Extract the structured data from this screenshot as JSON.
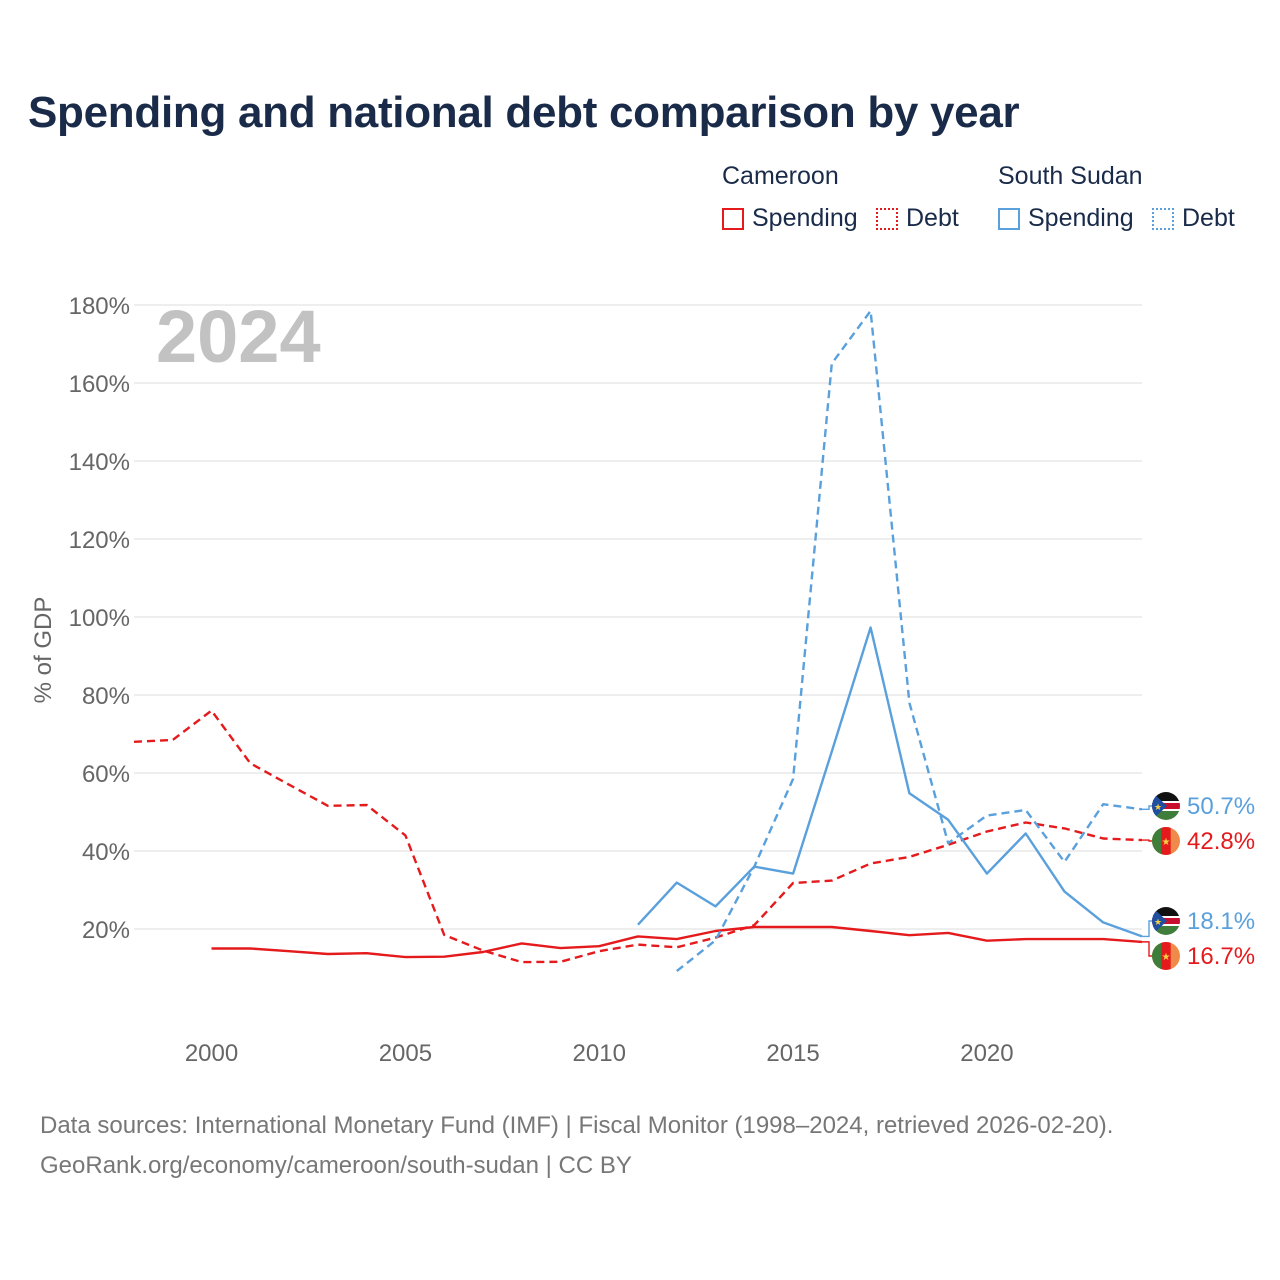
{
  "title": "Spending and national debt comparison by year",
  "legend": {
    "groups": [
      {
        "name": "Cameroon",
        "items": [
          {
            "label": "Spending",
            "style": "solid",
            "color": "#e41a1c"
          },
          {
            "label": "Debt",
            "style": "dotted",
            "color": "#e41a1c"
          }
        ]
      },
      {
        "name": "South Sudan",
        "items": [
          {
            "label": "Spending",
            "style": "solid",
            "color": "#5aa0dc"
          },
          {
            "label": "Debt",
            "style": "dotted",
            "color": "#5aa0dc"
          }
        ]
      }
    ]
  },
  "year_watermark": "2024",
  "source": {
    "line1": "Data sources: International Monetary Fund (IMF) | Fiscal Monitor (1998–2024, retrieved 2026-02-20).",
    "line2": "GeoRank.org/economy/cameroon/south-sudan | CC BY"
  },
  "chart_data": {
    "type": "line",
    "title": "Spending and national debt comparison by year",
    "xlabel": "",
    "ylabel": "% of GDP",
    "xlim": [
      1998,
      2024
    ],
    "ylim": [
      0,
      180
    ],
    "x_ticks": [
      2000,
      2005,
      2010,
      2015,
      2020
    ],
    "x_tick_labels": [
      "2000",
      "2005",
      "2010",
      "2015",
      "2020"
    ],
    "y_ticks": [
      20,
      40,
      60,
      80,
      100,
      120,
      140,
      160,
      180
    ],
    "y_tick_labels": [
      "20%",
      "40%",
      "60%",
      "80%",
      "100%",
      "120%",
      "140%",
      "160%",
      "180%"
    ],
    "grid": true,
    "series": [
      {
        "name": "Cameroon Spending",
        "country": "Cameroon",
        "metric": "Spending",
        "color": "#e41a1c",
        "dash": "solid",
        "end_label": "16.7%",
        "points": [
          [
            2000,
            15.0
          ],
          [
            2001,
            15.0
          ],
          [
            2002,
            14.3
          ],
          [
            2003,
            13.6
          ],
          [
            2004,
            13.8
          ],
          [
            2005,
            12.8
          ],
          [
            2006,
            12.9
          ],
          [
            2007,
            14.1
          ],
          [
            2008,
            16.3
          ],
          [
            2009,
            15.1
          ],
          [
            2010,
            15.6
          ],
          [
            2011,
            18.1
          ],
          [
            2012,
            17.4
          ],
          [
            2013,
            19.5
          ],
          [
            2014,
            20.5
          ],
          [
            2015,
            20.5
          ],
          [
            2016,
            20.5
          ],
          [
            2017,
            19.5
          ],
          [
            2018,
            18.4
          ],
          [
            2019,
            19.0
          ],
          [
            2020,
            17.0
          ],
          [
            2021,
            17.4
          ],
          [
            2022,
            17.4
          ],
          [
            2023,
            17.4
          ],
          [
            2024,
            16.7
          ]
        ]
      },
      {
        "name": "Cameroon Debt",
        "country": "Cameroon",
        "metric": "Debt",
        "color": "#e41a1c",
        "dash": "dashed",
        "end_label": "42.8%",
        "points": [
          [
            1998,
            68.0
          ],
          [
            1999,
            68.5
          ],
          [
            2000,
            76.0
          ],
          [
            2001,
            62.5
          ],
          [
            2002,
            57.0
          ],
          [
            2003,
            51.6
          ],
          [
            2004,
            51.8
          ],
          [
            2005,
            44.0
          ],
          [
            2006,
            18.5
          ],
          [
            2007,
            14.5
          ],
          [
            2008,
            11.5
          ],
          [
            2009,
            11.6
          ],
          [
            2010,
            14.3
          ],
          [
            2011,
            16.0
          ],
          [
            2012,
            15.3
          ],
          [
            2013,
            17.8
          ],
          [
            2014,
            21.0
          ],
          [
            2015,
            31.8
          ],
          [
            2016,
            32.4
          ],
          [
            2017,
            36.8
          ],
          [
            2018,
            38.5
          ],
          [
            2019,
            41.6
          ],
          [
            2020,
            45.0
          ],
          [
            2021,
            47.3
          ],
          [
            2022,
            45.8
          ],
          [
            2023,
            43.2
          ],
          [
            2024,
            42.8
          ]
        ]
      },
      {
        "name": "South Sudan Spending",
        "country": "South Sudan",
        "metric": "Spending",
        "color": "#5aa0dc",
        "dash": "solid",
        "end_label": "18.1%",
        "points": [
          [
            2011,
            21.1
          ],
          [
            2012,
            31.9
          ],
          [
            2013,
            25.8
          ],
          [
            2014,
            36.0
          ],
          [
            2015,
            34.2
          ],
          [
            2016,
            65.5
          ],
          [
            2017,
            97.3
          ],
          [
            2018,
            54.8
          ],
          [
            2019,
            48.0
          ],
          [
            2020,
            34.2
          ],
          [
            2021,
            44.5
          ],
          [
            2022,
            29.6
          ],
          [
            2023,
            21.7
          ],
          [
            2024,
            18.1
          ]
        ]
      },
      {
        "name": "South Sudan Debt",
        "country": "South Sudan",
        "metric": "Debt",
        "color": "#5aa0dc",
        "dash": "dashed",
        "end_label": "50.7%",
        "points": [
          [
            2012,
            9.2
          ],
          [
            2013,
            17.1
          ],
          [
            2014,
            36.0
          ],
          [
            2015,
            58.5
          ],
          [
            2016,
            165.0
          ],
          [
            2017,
            178.5
          ],
          [
            2018,
            78.0
          ],
          [
            2019,
            42.0
          ],
          [
            2020,
            49.1
          ],
          [
            2021,
            50.5
          ],
          [
            2022,
            37.2
          ],
          [
            2023,
            52.0
          ],
          [
            2024,
            50.7
          ]
        ]
      }
    ],
    "end_labels": [
      {
        "series": "South Sudan Debt",
        "text": "50.7%",
        "color": "#5aa0dc",
        "flag": "south-sudan-flag-icon"
      },
      {
        "series": "Cameroon Debt",
        "text": "42.8%",
        "color": "#e41a1c",
        "flag": "cameroon-flag-icon"
      },
      {
        "series": "South Sudan Spending",
        "text": "18.1%",
        "color": "#5aa0dc",
        "flag": "south-sudan-flag-icon"
      },
      {
        "series": "Cameroon Spending",
        "text": "16.7%",
        "color": "#e41a1c",
        "flag": "cameroon-flag-icon"
      }
    ]
  }
}
